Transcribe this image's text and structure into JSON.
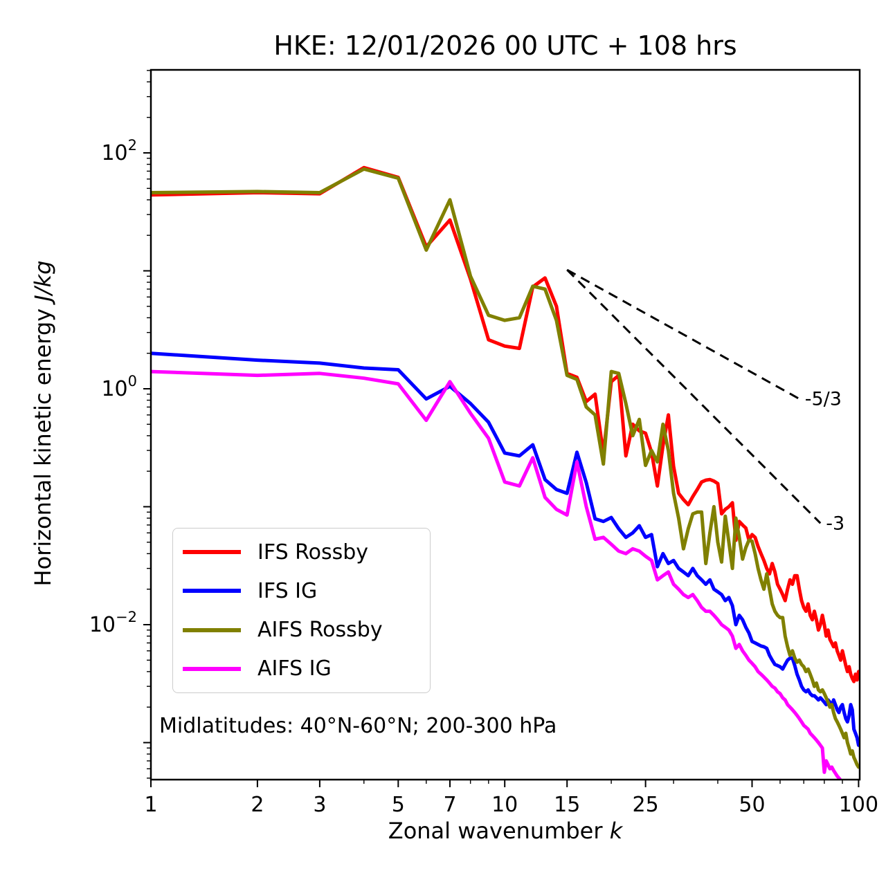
{
  "title": "HKE: 12/01/2026 00 UTC + 108 hrs",
  "xlabel": {
    "prefix": "Zonal wavenumber ",
    "symbol": "k"
  },
  "ylabel": {
    "prefix": "Horizontal kinetic energy ",
    "units": "J/kg"
  },
  "annotation": "Midlatitudes: 40°N-60°N; 200-300 hPa",
  "chart_data": {
    "type": "line",
    "x_scale": "log",
    "y_scale": "log",
    "xlim": [
      1,
      101
    ],
    "ylim": [
      0.000485,
      506
    ],
    "x_major_ticks": [
      1,
      2,
      3,
      5,
      7,
      10,
      15,
      25,
      50,
      100
    ],
    "x_minor_ticks": [
      4,
      6,
      8,
      9,
      20,
      30,
      40,
      60,
      70,
      80,
      90
    ],
    "y_decade_ticks": [
      2,
      1,
      0,
      -1,
      -2,
      -3
    ],
    "y_labeled_exponents": [
      2,
      0,
      -2
    ],
    "grid": false,
    "legend_position": "lower left",
    "axis_color": "#000000",
    "x": [
      1,
      2,
      3,
      4,
      5,
      6,
      7,
      8,
      9,
      10,
      11,
      12,
      13,
      14,
      15,
      16,
      17,
      18,
      19,
      20,
      21,
      22,
      23,
      24,
      25,
      26,
      27,
      28,
      29,
      30,
      31,
      32,
      33,
      34,
      35,
      36,
      37,
      38,
      39,
      40,
      41,
      42,
      43,
      44,
      45,
      46,
      47,
      48,
      49,
      50,
      51,
      52,
      53,
      54,
      55,
      56,
      57,
      58,
      59,
      60,
      61,
      62,
      63,
      64,
      65,
      66,
      67,
      68,
      69,
      70,
      71,
      72,
      73,
      74,
      75,
      76,
      77,
      78,
      79,
      80,
      81,
      82,
      83,
      84,
      85,
      86,
      87,
      88,
      89,
      90,
      91,
      92,
      93,
      94,
      95,
      96,
      97,
      98,
      99,
      100
    ],
    "series": [
      {
        "name": "IFS Rossby",
        "color": "#ff0000",
        "values": [
          44,
          46,
          45,
          75,
          62,
          16,
          27,
          8.5,
          2.6,
          2.3,
          2.2,
          7.3,
          8.7,
          5.0,
          1.35,
          1.25,
          0.78,
          0.9,
          0.28,
          1.15,
          1.3,
          0.27,
          0.5,
          0.44,
          0.42,
          0.29,
          0.15,
          0.33,
          0.6,
          0.22,
          0.13,
          0.115,
          0.104,
          0.122,
          0.14,
          0.162,
          0.168,
          0.17,
          0.165,
          0.157,
          0.087,
          0.095,
          0.1,
          0.108,
          0.052,
          0.075,
          0.07,
          0.066,
          0.052,
          0.058,
          0.055,
          0.046,
          0.04,
          0.035,
          0.03,
          0.027,
          0.033,
          0.028,
          0.022,
          0.02,
          0.018,
          0.016,
          0.02,
          0.024,
          0.022,
          0.026,
          0.026,
          0.02,
          0.016,
          0.014,
          0.013,
          0.015,
          0.012,
          0.011,
          0.013,
          0.011,
          0.009,
          0.01,
          0.012,
          0.01,
          0.008,
          0.009,
          0.0075,
          0.007,
          0.0065,
          0.007,
          0.006,
          0.0055,
          0.005,
          0.006,
          0.0052,
          0.0045,
          0.004,
          0.0044,
          0.0038,
          0.0035,
          0.0033,
          0.0038,
          0.0034,
          0.004
        ]
      },
      {
        "name": "IFS IG",
        "color": "#0000ff",
        "values": [
          2.0,
          1.75,
          1.65,
          1.5,
          1.45,
          0.82,
          1.05,
          0.75,
          0.52,
          0.285,
          0.27,
          0.335,
          0.17,
          0.14,
          0.13,
          0.29,
          0.16,
          0.079,
          0.075,
          0.081,
          0.065,
          0.055,
          0.06,
          0.069,
          0.055,
          0.058,
          0.031,
          0.04,
          0.033,
          0.035,
          0.03,
          0.028,
          0.026,
          0.03,
          0.026,
          0.024,
          0.022,
          0.024,
          0.02,
          0.019,
          0.018,
          0.016,
          0.017,
          0.0145,
          0.01,
          0.012,
          0.011,
          0.0095,
          0.0085,
          0.0072,
          0.007,
          0.0068,
          0.0066,
          0.0065,
          0.0063,
          0.0055,
          0.005,
          0.0046,
          0.0045,
          0.0044,
          0.0042,
          0.0046,
          0.005,
          0.0052,
          0.0052,
          0.0045,
          0.0038,
          0.0034,
          0.003,
          0.0028,
          0.0027,
          0.0028,
          0.0026,
          0.0025,
          0.0025,
          0.0024,
          0.0023,
          0.0024,
          0.0023,
          0.0022,
          0.0021,
          0.0023,
          0.0022,
          0.002,
          0.0023,
          0.0021,
          0.0019,
          0.0018,
          0.002,
          0.0021,
          0.0018,
          0.0016,
          0.0015,
          0.0017,
          0.0021,
          0.0019,
          0.0013,
          0.0012,
          0.0011,
          0.00095
        ]
      },
      {
        "name": "AIFS Rossby",
        "color": "#808000",
        "values": [
          46,
          47,
          46,
          73,
          61,
          15,
          40,
          9.0,
          4.2,
          3.8,
          4.0,
          7.4,
          7.0,
          3.8,
          1.3,
          1.2,
          0.7,
          0.6,
          0.23,
          1.4,
          1.35,
          0.75,
          0.4,
          0.55,
          0.224,
          0.3,
          0.24,
          0.5,
          0.3,
          0.13,
          0.08,
          0.044,
          0.065,
          0.087,
          0.09,
          0.09,
          0.033,
          0.06,
          0.1,
          0.05,
          0.034,
          0.083,
          0.05,
          0.03,
          0.08,
          0.055,
          0.036,
          0.045,
          0.052,
          0.051,
          0.04,
          0.03,
          0.024,
          0.02,
          0.027,
          0.02,
          0.015,
          0.013,
          0.012,
          0.0115,
          0.0115,
          0.008,
          0.0065,
          0.0055,
          0.006,
          0.0052,
          0.0048,
          0.005,
          0.0046,
          0.0044,
          0.004,
          0.0042,
          0.0038,
          0.0034,
          0.003,
          0.0032,
          0.0028,
          0.0027,
          0.0028,
          0.0026,
          0.0024,
          0.0022,
          0.002,
          0.0021,
          0.0018,
          0.0016,
          0.0015,
          0.0014,
          0.0013,
          0.0012,
          0.0011,
          0.0012,
          0.001,
          0.0009,
          0.0008,
          0.00085,
          0.00075,
          0.0007,
          0.00065,
          0.00062
        ]
      },
      {
        "name": "AIFS IG",
        "color": "#ff00ff",
        "values": [
          1.4,
          1.3,
          1.35,
          1.23,
          1.1,
          0.54,
          1.15,
          0.62,
          0.38,
          0.162,
          0.15,
          0.26,
          0.12,
          0.095,
          0.085,
          0.24,
          0.1,
          0.053,
          0.055,
          0.048,
          0.042,
          0.04,
          0.044,
          0.042,
          0.038,
          0.035,
          0.024,
          0.026,
          0.028,
          0.022,
          0.02,
          0.018,
          0.017,
          0.018,
          0.016,
          0.014,
          0.013,
          0.013,
          0.012,
          0.011,
          0.01,
          0.0095,
          0.009,
          0.008,
          0.0063,
          0.0068,
          0.006,
          0.0055,
          0.005,
          0.0047,
          0.0044,
          0.004,
          0.0038,
          0.0036,
          0.0034,
          0.0032,
          0.003,
          0.0029,
          0.0027,
          0.0026,
          0.0024,
          0.0023,
          0.0021,
          0.002,
          0.0019,
          0.0018,
          0.0017,
          0.0016,
          0.0015,
          0.0014,
          0.00135,
          0.0013,
          0.0012,
          0.00115,
          0.0011,
          0.00105,
          0.001,
          0.00095,
          0.0009,
          0.00056,
          0.0007,
          0.00065,
          0.0006,
          0.00062,
          0.00058,
          0.00055,
          0.00052,
          0.0005,
          0.00048,
          0.00046,
          0.00044,
          0.00042,
          0.0004,
          0.00038,
          0.00036,
          0.00034,
          0.00032,
          0.0003,
          0.00028,
          0.00026
        ]
      }
    ],
    "reference_lines": [
      {
        "label": "-5/3",
        "slope": -1.6667,
        "k_start": 15,
        "E_start": 10.2,
        "k_end": 68
      },
      {
        "label": "-3",
        "slope": -3,
        "k_start": 15,
        "E_start": 10.2,
        "k_end": 78
      }
    ]
  }
}
